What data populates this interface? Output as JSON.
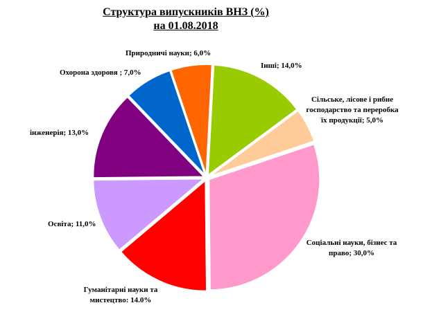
{
  "chart_data": {
    "type": "pie",
    "title": "Структура випускників ВНЗ (%)",
    "subtitle": "на 01.08.2018",
    "slices": [
      {
        "label": "Інші; 14,0%",
        "value": 14.0,
        "color": "#99cc00"
      },
      {
        "label": "Сільське, лісове і рибне господарство та переробка їх продукції; 5,0%",
        "value": 5.0,
        "color": "#ffcc99"
      },
      {
        "label": "Соціальні науки, бізнес та право; 30,0%",
        "value": 30.0,
        "color": "#ff99cc"
      },
      {
        "label": "Гуманітарні науки та мистецтво: 14.0%",
        "value": 14.0,
        "color": "#ff0000"
      },
      {
        "label": "Освіта; 11,0%",
        "value": 11.0,
        "color": "#cc99ff"
      },
      {
        "label": "інженерія; 13,0%",
        "value": 13.0,
        "color": "#800080"
      },
      {
        "label": "Охорона здоровя ; 7,0%",
        "value": 7.0,
        "color": "#0066cc"
      },
      {
        "label": "Природничі науки; 6,0%",
        "value": 6.0,
        "color": "#ff6600"
      }
    ]
  }
}
